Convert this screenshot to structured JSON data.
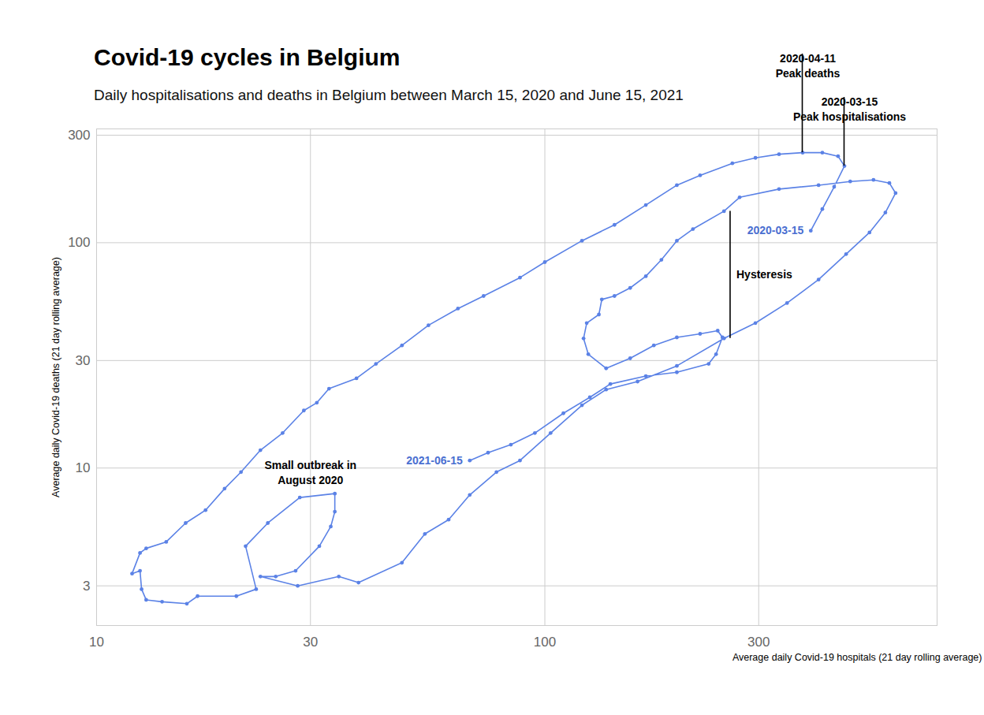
{
  "chart_data": {
    "type": "line",
    "marker": "circle",
    "title": "Covid-19 cycles in Belgium",
    "subtitle": "Daily hospitalisations and deaths in Belgium between March 15, 2020 and June 15, 2021",
    "xlabel": "Average daily Covid-19 hospitals (21 day rolling average)",
    "ylabel": "Average daily Covid-19 deaths (21 day rolling average)",
    "log": true,
    "grid": true,
    "color": "#5b82e6",
    "xlim": [
      10,
      750
    ],
    "ylim": [
      2,
      320
    ],
    "xticks": [
      10,
      30,
      100,
      300
    ],
    "yticks": [
      3,
      10,
      30,
      100,
      300
    ],
    "x": [
      392,
      416,
      442,
      466,
      451,
      416,
      376,
      333,
      295,
      262,
      222,
      197,
      168,
      143,
      121,
      100,
      88,
      73,
      64,
      55,
      48,
      42,
      38,
      33,
      31,
      29,
      26,
      23.2,
      21,
      19.3,
      17.5,
      15.8,
      14.3,
      12.9,
      12.5,
      12.0,
      12.5,
      12.6,
      12.9,
      14.0,
      15.9,
      16.8,
      20.5,
      22.7,
      21.5,
      24.1,
      28.4,
      34.0,
      34.0,
      33.3,
      31.4,
      27.8,
      25.1,
      23.2,
      28.1,
      34.7,
      38.4,
      48,
      54,
      61,
      68,
      78,
      88,
      103,
      121,
      137,
      161,
      197,
      251,
      295,
      347,
      408,
      470,
      530,
      575,
      606,
      587,
      541,
      480,
      408,
      333,
      272,
      251,
      214,
      197,
      182,
      168,
      155,
      143,
      134,
      132,
      124,
      122,
      125,
      137,
      155,
      175,
      197,
      222,
      243,
      249,
      241,
      232,
      197,
      168,
      140,
      126,
      110,
      95,
      84,
      74.7,
      68
    ],
    "values": [
      113,
      141,
      177,
      219,
      242,
      251,
      251,
      247,
      238,
      225,
      199,
      180,
      147,
      120,
      102,
      82,
      70,
      58,
      51,
      43,
      35,
      29,
      25,
      22.5,
      19.5,
      18,
      14.3,
      12,
      9.6,
      8.1,
      6.5,
      5.7,
      4.7,
      4.4,
      4.2,
      3.4,
      3.5,
      2.9,
      2.6,
      2.55,
      2.5,
      2.7,
      2.7,
      2.9,
      4.5,
      5.7,
      7.4,
      7.7,
      6.4,
      5.5,
      4.5,
      3.5,
      3.3,
      3.3,
      3.0,
      3.3,
      3.1,
      3.8,
      5.1,
      5.9,
      7.6,
      9.6,
      10.8,
      14.3,
      19,
      22.3,
      24.2,
      28.4,
      37.6,
      44,
      54,
      68.6,
      89,
      111,
      136,
      166,
      184,
      190,
      187,
      180,
      173,
      159,
      138,
      115,
      102,
      84,
      71,
      63,
      58,
      56,
      48,
      44,
      37.6,
      32,
      27.7,
      30.7,
      35,
      38,
      39.4,
      40.7,
      38,
      32,
      29,
      26.6,
      25.6,
      23.6,
      20.6,
      17.5,
      14.3,
      12.7,
      11.7,
      10.8
    ],
    "annotations": [
      {
        "type": "callout",
        "text": "2020-04-11\nPeak deaths",
        "x": 376,
        "y": 251,
        "color": "#000000"
      },
      {
        "type": "callout",
        "text": "2020-03-15\nPeak hospitalisations",
        "x": 466,
        "y": 219,
        "color": "#000000"
      },
      {
        "type": "rule",
        "text": "Hysteresis",
        "x": 259,
        "y": 138,
        "y2": 37.6,
        "color": "#000000"
      },
      {
        "type": "point_label",
        "text": "2020-03-15",
        "x": 392,
        "y": 113,
        "color": "#4a6fd1"
      },
      {
        "type": "point_label",
        "text": "2021-06-15",
        "x": 68,
        "y": 10.8,
        "color": "#4a6fd1"
      },
      {
        "type": "text",
        "text": "Small outbreak in\nAugust 2020",
        "x": 30,
        "y": 9.6,
        "color": "#000000"
      }
    ]
  }
}
